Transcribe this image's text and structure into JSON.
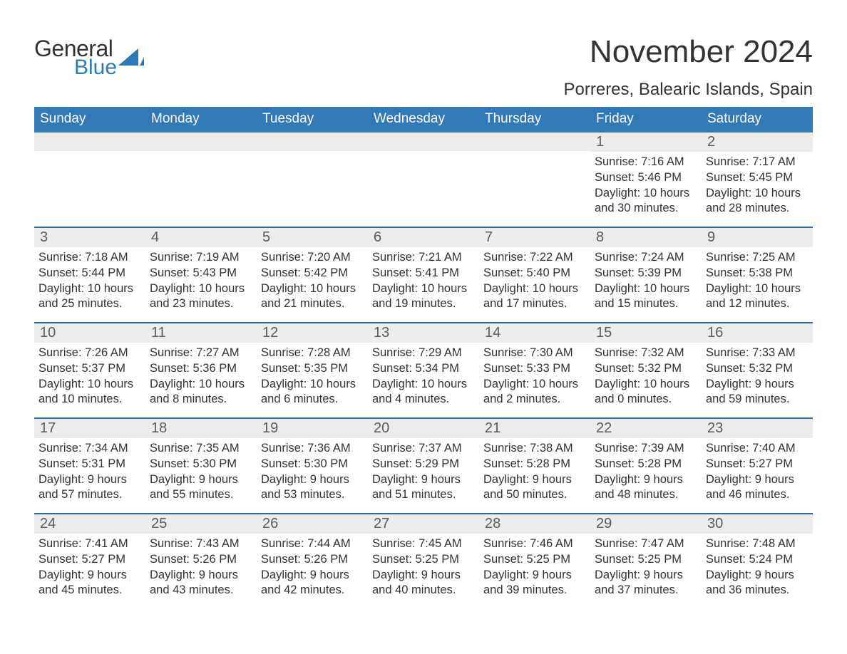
{
  "logo": {
    "word1": "General",
    "word2": "Blue",
    "sail_color": "#2a7ab8",
    "text_gray": "#333333"
  },
  "title": "November 2024",
  "location": "Porreres, Balearic Islands, Spain",
  "colors": {
    "header_bg": "#3279b7",
    "header_text": "#ffffff",
    "week_border": "#2a6aa8",
    "daynum_bg": "#ececec",
    "daynum_text": "#5c5c5c",
    "body_text": "#333333",
    "page_bg": "#ffffff"
  },
  "days_of_week": [
    "Sunday",
    "Monday",
    "Tuesday",
    "Wednesday",
    "Thursday",
    "Friday",
    "Saturday"
  ],
  "calendar": {
    "type": "table",
    "columns": 7,
    "weeks": [
      [
        null,
        null,
        null,
        null,
        null,
        {
          "n": 1,
          "sunrise": "7:16 AM",
          "sunset": "5:46 PM",
          "daylight": "10 hours and 30 minutes."
        },
        {
          "n": 2,
          "sunrise": "7:17 AM",
          "sunset": "5:45 PM",
          "daylight": "10 hours and 28 minutes."
        }
      ],
      [
        {
          "n": 3,
          "sunrise": "7:18 AM",
          "sunset": "5:44 PM",
          "daylight": "10 hours and 25 minutes."
        },
        {
          "n": 4,
          "sunrise": "7:19 AM",
          "sunset": "5:43 PM",
          "daylight": "10 hours and 23 minutes."
        },
        {
          "n": 5,
          "sunrise": "7:20 AM",
          "sunset": "5:42 PM",
          "daylight": "10 hours and 21 minutes."
        },
        {
          "n": 6,
          "sunrise": "7:21 AM",
          "sunset": "5:41 PM",
          "daylight": "10 hours and 19 minutes."
        },
        {
          "n": 7,
          "sunrise": "7:22 AM",
          "sunset": "5:40 PM",
          "daylight": "10 hours and 17 minutes."
        },
        {
          "n": 8,
          "sunrise": "7:24 AM",
          "sunset": "5:39 PM",
          "daylight": "10 hours and 15 minutes."
        },
        {
          "n": 9,
          "sunrise": "7:25 AM",
          "sunset": "5:38 PM",
          "daylight": "10 hours and 12 minutes."
        }
      ],
      [
        {
          "n": 10,
          "sunrise": "7:26 AM",
          "sunset": "5:37 PM",
          "daylight": "10 hours and 10 minutes."
        },
        {
          "n": 11,
          "sunrise": "7:27 AM",
          "sunset": "5:36 PM",
          "daylight": "10 hours and 8 minutes."
        },
        {
          "n": 12,
          "sunrise": "7:28 AM",
          "sunset": "5:35 PM",
          "daylight": "10 hours and 6 minutes."
        },
        {
          "n": 13,
          "sunrise": "7:29 AM",
          "sunset": "5:34 PM",
          "daylight": "10 hours and 4 minutes."
        },
        {
          "n": 14,
          "sunrise": "7:30 AM",
          "sunset": "5:33 PM",
          "daylight": "10 hours and 2 minutes."
        },
        {
          "n": 15,
          "sunrise": "7:32 AM",
          "sunset": "5:32 PM",
          "daylight": "10 hours and 0 minutes."
        },
        {
          "n": 16,
          "sunrise": "7:33 AM",
          "sunset": "5:32 PM",
          "daylight": "9 hours and 59 minutes."
        }
      ],
      [
        {
          "n": 17,
          "sunrise": "7:34 AM",
          "sunset": "5:31 PM",
          "daylight": "9 hours and 57 minutes."
        },
        {
          "n": 18,
          "sunrise": "7:35 AM",
          "sunset": "5:30 PM",
          "daylight": "9 hours and 55 minutes."
        },
        {
          "n": 19,
          "sunrise": "7:36 AM",
          "sunset": "5:30 PM",
          "daylight": "9 hours and 53 minutes."
        },
        {
          "n": 20,
          "sunrise": "7:37 AM",
          "sunset": "5:29 PM",
          "daylight": "9 hours and 51 minutes."
        },
        {
          "n": 21,
          "sunrise": "7:38 AM",
          "sunset": "5:28 PM",
          "daylight": "9 hours and 50 minutes."
        },
        {
          "n": 22,
          "sunrise": "7:39 AM",
          "sunset": "5:28 PM",
          "daylight": "9 hours and 48 minutes."
        },
        {
          "n": 23,
          "sunrise": "7:40 AM",
          "sunset": "5:27 PM",
          "daylight": "9 hours and 46 minutes."
        }
      ],
      [
        {
          "n": 24,
          "sunrise": "7:41 AM",
          "sunset": "5:27 PM",
          "daylight": "9 hours and 45 minutes."
        },
        {
          "n": 25,
          "sunrise": "7:43 AM",
          "sunset": "5:26 PM",
          "daylight": "9 hours and 43 minutes."
        },
        {
          "n": 26,
          "sunrise": "7:44 AM",
          "sunset": "5:26 PM",
          "daylight": "9 hours and 42 minutes."
        },
        {
          "n": 27,
          "sunrise": "7:45 AM",
          "sunset": "5:25 PM",
          "daylight": "9 hours and 40 minutes."
        },
        {
          "n": 28,
          "sunrise": "7:46 AM",
          "sunset": "5:25 PM",
          "daylight": "9 hours and 39 minutes."
        },
        {
          "n": 29,
          "sunrise": "7:47 AM",
          "sunset": "5:25 PM",
          "daylight": "9 hours and 37 minutes."
        },
        {
          "n": 30,
          "sunrise": "7:48 AM",
          "sunset": "5:24 PM",
          "daylight": "9 hours and 36 minutes."
        }
      ]
    ]
  },
  "labels": {
    "sunrise": "Sunrise: ",
    "sunset": "Sunset: ",
    "daylight": "Daylight: "
  }
}
